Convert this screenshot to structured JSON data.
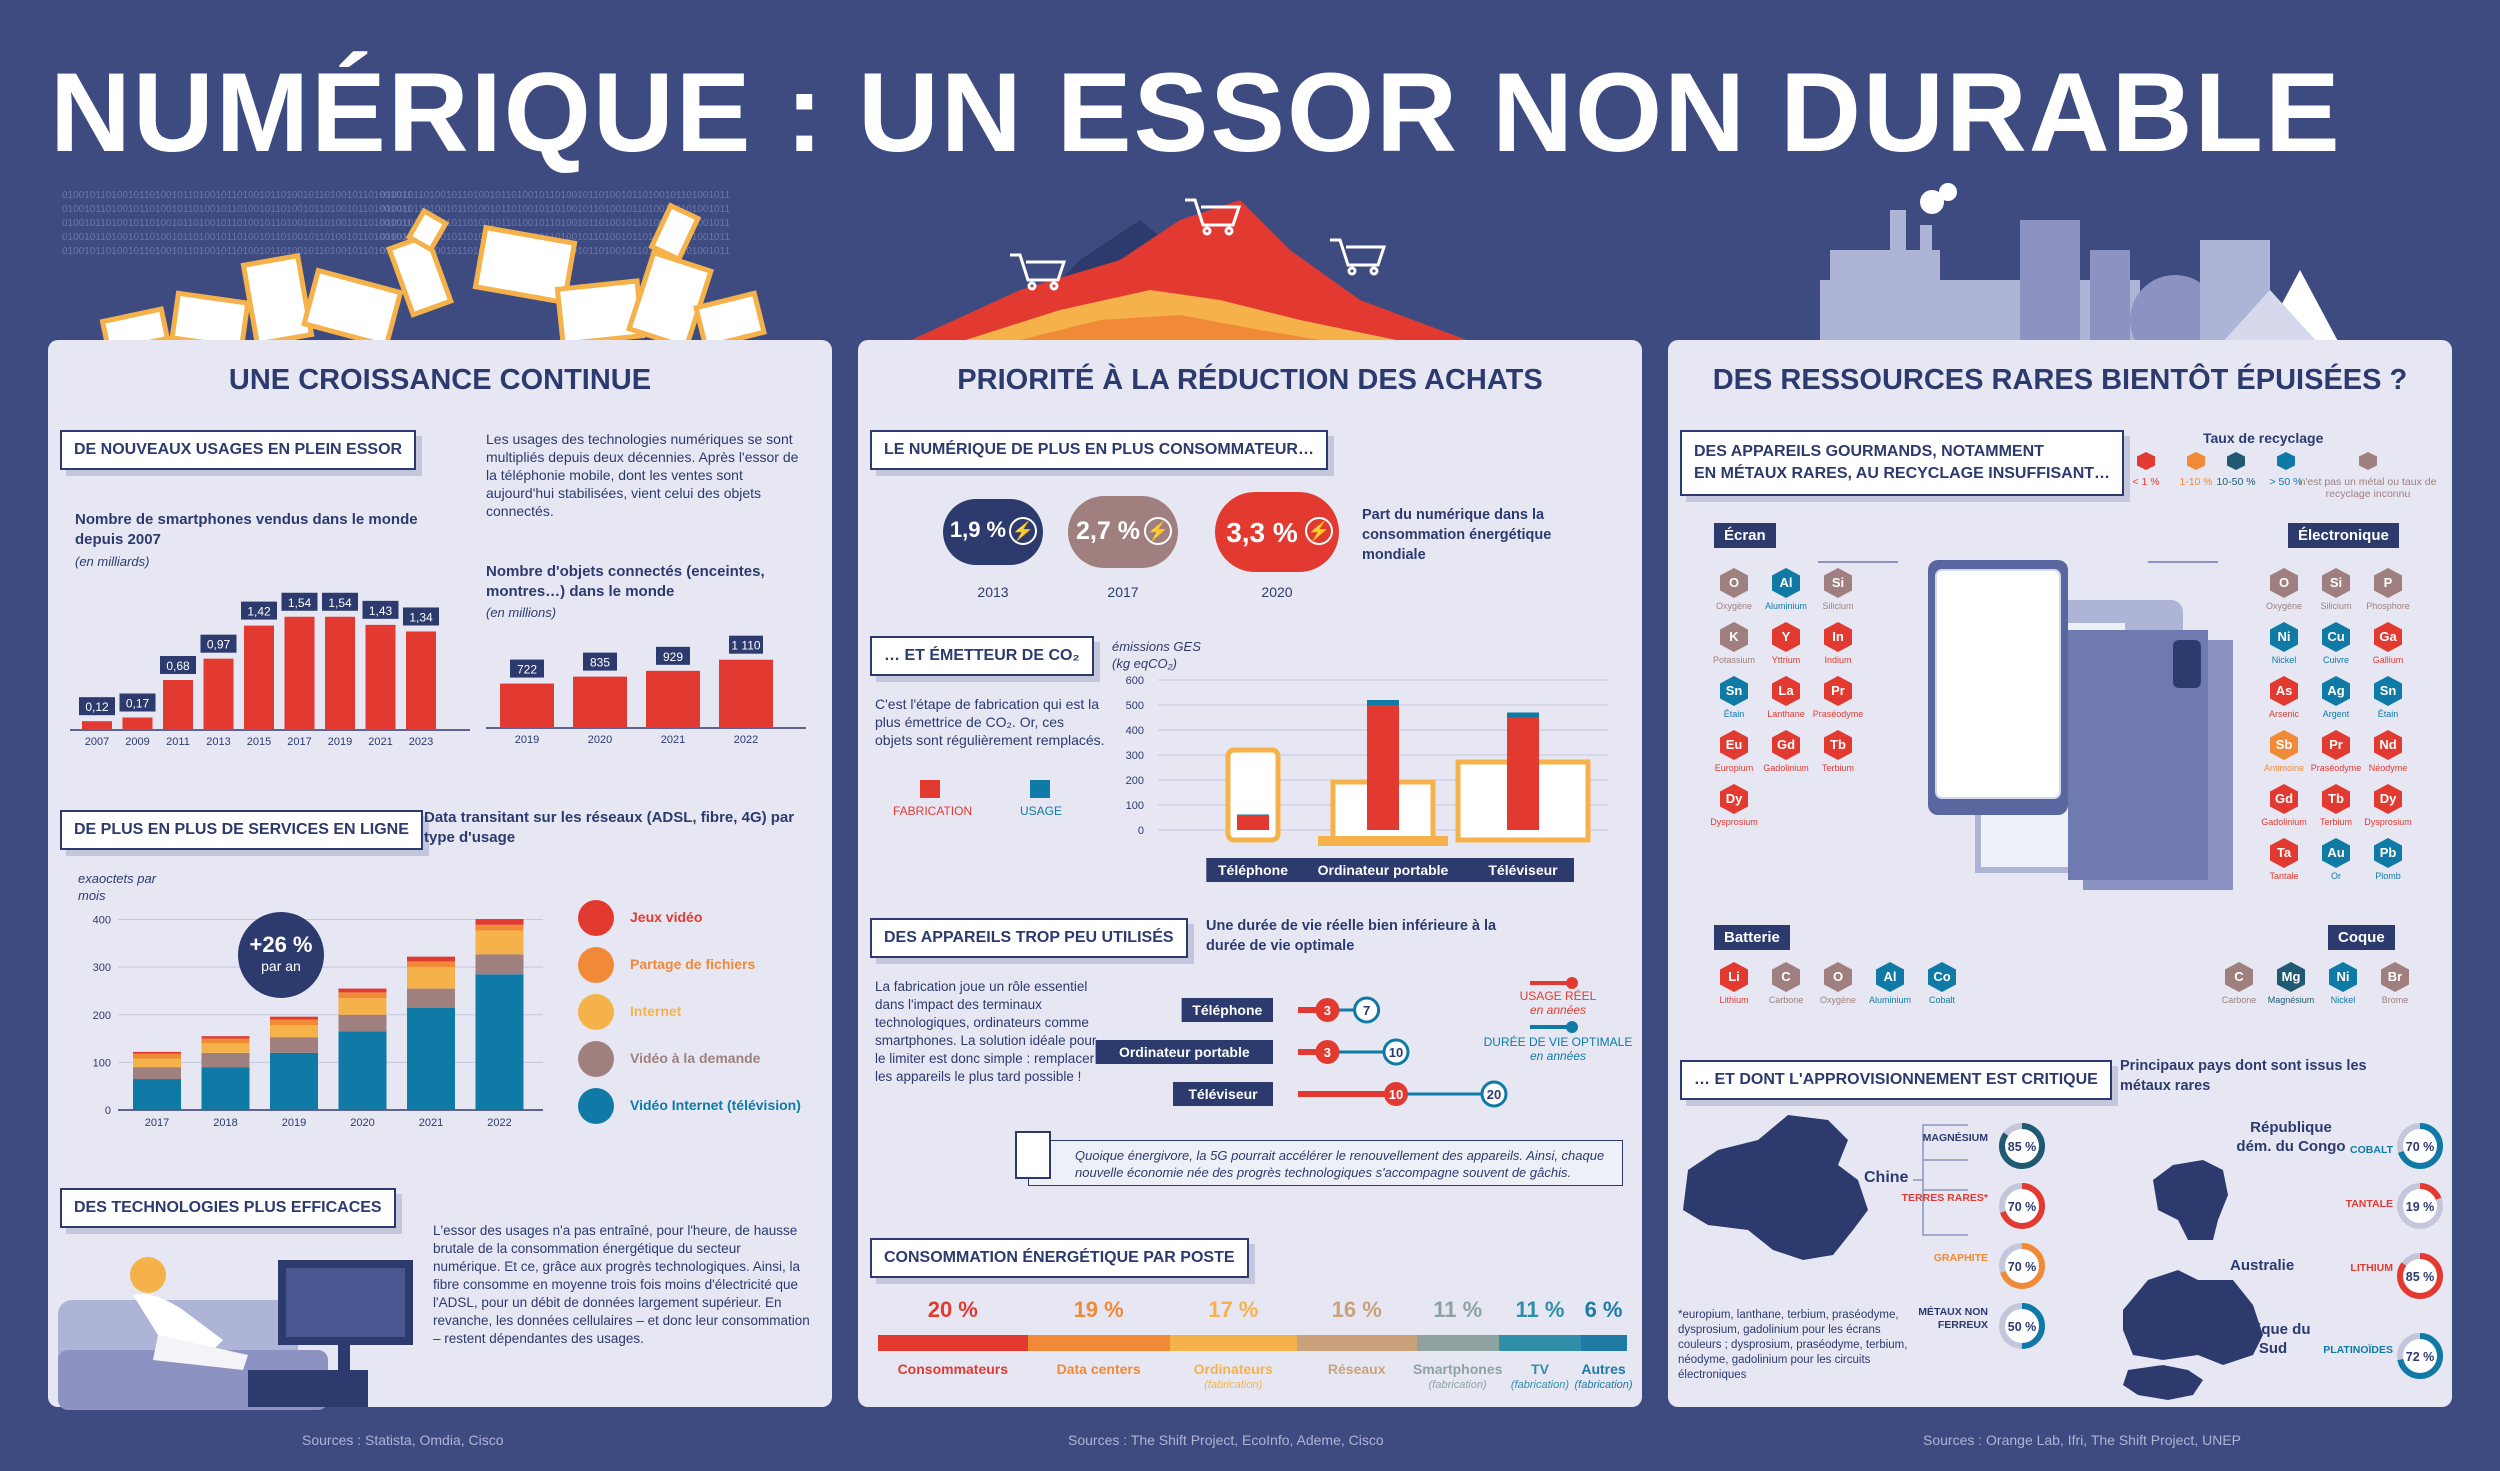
{
  "title": "NUMÉRIQUE : UN ESSOR NON DURABLE",
  "colors": {
    "background": "#3e4b80",
    "panel": "#e6e7f3",
    "navy": "#2d3a6e",
    "red": "#e23a31",
    "orange": "#f08a36",
    "yellow": "#f6b24a",
    "mauve": "#a0807f",
    "blue": "#0f7aa6"
  },
  "binary_text": "0100101101001011010010110100101101001011010010110100101101001011",
  "panel1": {
    "title": "UNE CROISSANCE CONTINUE",
    "s1_title": "DE NOUVEAUX USAGES EN PLEIN ESSOR",
    "s1_text": "Les usages des technologies numériques se sont multipliés depuis deux décennies. Après l'essor de la téléphonie mobile, dont les ventes sont aujourd'hui stabilisées, vient celui des objets connectés.",
    "smartphones_title": "Nombre de smartphones vendus dans le monde depuis 2007",
    "smartphones_unit": "(en milliards)",
    "iot_title": "Nombre d'objets connectés (enceintes, montres…) dans le monde",
    "iot_unit": "(en millions)",
    "s2_title": "DE PLUS EN PLUS DE SERVICES EN LIGNE",
    "s2_subtitle": "Data transitant sur les réseaux (ADSL, fibre, 4G) par type d'usage",
    "data_unit": "exaoctets par mois",
    "growth_value": "+26 %",
    "growth_label": "par an",
    "s3_title": "DES TECHNOLOGIES PLUS EFFICACES",
    "s3_text": "L'essor des usages n'a pas entraîné, pour l'heure, de hausse brutale de la consommation énergétique du secteur numérique. Et ce, grâce aux progrès technologiques. Ainsi, la fibre consomme en moyenne trois fois moins d'électricité que l'ADSL, pour un débit de données largement supérieur. En revanche, les données cellulaires – et donc leur consommation – restent dépendantes des usages.",
    "sources": "Sources : Statista, Omdia, Cisco"
  },
  "panel2": {
    "title": "PRIORITÉ À LA RÉDUCTION DES ACHATS",
    "s1_title": "LE NUMÉRIQUE DE PLUS EN PLUS CONSOMMATEUR…",
    "share_label": "Part du numérique dans la consommation énergétique mondiale",
    "s2_title": "… ET ÉMETTEUR DE CO₂",
    "s2_text": "C'est l'étape de fabrication qui est la plus émettrice de CO₂. Or, ces objets sont régulièrement remplacés.",
    "ges_label": "émissions GES (kg eqCO₂)",
    "fabrication_label": "FABRICATION",
    "usage_label": "USAGE",
    "s3_title": "DES APPAREILS TROP PEU UTILISÉS",
    "s3_subtitle": "Une durée de vie réelle bien inférieure à la durée de vie optimale",
    "s3_text": "La fabrication joue un rôle essentiel dans l'impact des terminaux technologiques, ordinateurs comme smartphones. La solution idéale pour le limiter est donc simple : remplacer les appareils le plus tard possible !",
    "legend_real": "USAGE RÉEL",
    "legend_real_unit": "en années",
    "legend_opt": "DURÉE DE VIE OPTIMALE",
    "legend_opt_unit": "en années",
    "note": "Quoique énergivore, la 5G pourrait accélérer le renouvellement des appareils. Ainsi, chaque nouvelle économie née des progrès technologiques s'accompagne souvent de gâchis.",
    "s4_title": "CONSOMMATION ÉNERGÉTIQUE PAR POSTE",
    "sources": "Sources : The Shift Project, EcoInfo, Ademe, Cisco"
  },
  "panel3": {
    "title": "DES RESSOURCES RARES BIENTÔT ÉPUISÉES ?",
    "s1_title_1": "DES APPAREILS GOURMANDS, NOTAMMENT",
    "s1_title_2": "EN MÉTAUX RARES, AU RECYCLAGE INSUFFISANT…",
    "recycle_title": "Taux de recyclage",
    "recycle_legend": [
      {
        "label": "< 1 %",
        "color": "#e23a31"
      },
      {
        "label": "1-10 %",
        "color": "#f08a36"
      },
      {
        "label": "10-50 %",
        "color": "#1f5a72"
      },
      {
        "label": "> 50 %",
        "color": "#0f7aa6"
      },
      {
        "label": "n'est pas un métal ou taux de recyclage inconnu",
        "color": "#a0807f"
      }
    ],
    "groups": [
      {
        "name": "Écran",
        "elements": [
          {
            "sym": "O",
            "label": "Oxygène",
            "color": "#a0807f"
          },
          {
            "sym": "Al",
            "label": "Aluminium",
            "color": "#0f7aa6"
          },
          {
            "sym": "Si",
            "label": "Silicium",
            "color": "#a0807f"
          },
          {
            "sym": "K",
            "label": "Potassium",
            "color": "#a0807f"
          },
          {
            "sym": "Y",
            "label": "Yttrium",
            "color": "#e23a31"
          },
          {
            "sym": "In",
            "label": "Indium",
            "color": "#e23a31"
          },
          {
            "sym": "Sn",
            "label": "Étain",
            "color": "#0f7aa6"
          },
          {
            "sym": "La",
            "label": "Lanthane",
            "color": "#e23a31"
          },
          {
            "sym": "Pr",
            "label": "Praséodyme",
            "color": "#e23a31"
          },
          {
            "sym": "Eu",
            "label": "Europium",
            "color": "#e23a31"
          },
          {
            "sym": "Gd",
            "label": "Gadolinium",
            "color": "#e23a31"
          },
          {
            "sym": "Tb",
            "label": "Terbium",
            "color": "#e23a31"
          },
          {
            "sym": "Dy",
            "label": "Dysprosium",
            "color": "#e23a31"
          }
        ]
      },
      {
        "name": "Électronique",
        "elements": [
          {
            "sym": "O",
            "label": "Oxygène",
            "color": "#a0807f"
          },
          {
            "sym": "Si",
            "label": "Silicium",
            "color": "#a0807f"
          },
          {
            "sym": "P",
            "label": "Phosphore",
            "color": "#a0807f"
          },
          {
            "sym": "Ni",
            "label": "Nickel",
            "color": "#0f7aa6"
          },
          {
            "sym": "Cu",
            "label": "Cuivre",
            "color": "#0f7aa6"
          },
          {
            "sym": "Ga",
            "label": "Gallium",
            "color": "#e23a31"
          },
          {
            "sym": "As",
            "label": "Arsenic",
            "color": "#e23a31"
          },
          {
            "sym": "Ag",
            "label": "Argent",
            "color": "#0f7aa6"
          },
          {
            "sym": "Sn",
            "label": "Étain",
            "color": "#0f7aa6"
          },
          {
            "sym": "Sb",
            "label": "Antimoine",
            "color": "#f08a36"
          },
          {
            "sym": "Pr",
            "label": "Praséodyme",
            "color": "#e23a31"
          },
          {
            "sym": "Nd",
            "label": "Néodyme",
            "color": "#e23a31"
          },
          {
            "sym": "Gd",
            "label": "Gadolinium",
            "color": "#e23a31"
          },
          {
            "sym": "Tb",
            "label": "Terbium",
            "color": "#e23a31"
          },
          {
            "sym": "Dy",
            "label": "Dysprosium",
            "color": "#e23a31"
          },
          {
            "sym": "Ta",
            "label": "Tantale",
            "color": "#e23a31"
          },
          {
            "sym": "Au",
            "label": "Or",
            "color": "#0f7aa6"
          },
          {
            "sym": "Pb",
            "label": "Plomb",
            "color": "#0f7aa6"
          }
        ]
      },
      {
        "name": "Batterie",
        "elements": [
          {
            "sym": "Li",
            "label": "Lithium",
            "color": "#e23a31"
          },
          {
            "sym": "C",
            "label": "Carbone",
            "color": "#a0807f"
          },
          {
            "sym": "O",
            "label": "Oxygène",
            "color": "#a0807f"
          },
          {
            "sym": "Al",
            "label": "Aluminium",
            "color": "#0f7aa6"
          },
          {
            "sym": "Co",
            "label": "Cobalt",
            "color": "#0f7aa6"
          }
        ]
      },
      {
        "name": "Coque",
        "elements": [
          {
            "sym": "C",
            "label": "Carbone",
            "color": "#a0807f"
          },
          {
            "sym": "Mg",
            "label": "Magnésium",
            "color": "#1f5a72"
          },
          {
            "sym": "Ni",
            "label": "Nickel",
            "color": "#0f7aa6"
          },
          {
            "sym": "Br",
            "label": "Brome",
            "color": "#a0807f"
          }
        ]
      }
    ],
    "s2_title": "… ET DONT L'APPROVISIONNEMENT EST CRITIQUE",
    "s2_subtitle": "Principaux pays dont sont issus les métaux rares",
    "china": "Chine",
    "china_items": [
      {
        "label": "MAGNÉSIUM",
        "value": 85,
        "text": "85 %",
        "color": "#1f5a72",
        "lcolor": "#2d3a6e"
      },
      {
        "label": "TERRES RARES*",
        "value": 70,
        "text": "70 %",
        "color": "#e23a31",
        "lcolor": "#e23a31"
      },
      {
        "label": "GRAPHITE",
        "value": 70,
        "text": "70 %",
        "color": "#f08a36",
        "lcolor": "#f08a36"
      },
      {
        "label": "MÉTAUX NON FERREUX",
        "value": 50,
        "text": "50 %",
        "color": "#0f7aa6",
        "lcolor": "#2d3a6e"
      }
    ],
    "footnote": "*europium, lanthane, terbium, praséodyme, dysprosium, gadolinium pour les écrans couleurs ; dysprosium, praséodyme, terbium, néodyme, gadolinium pour les circuits électroniques",
    "rdc": "République dém. du Congo",
    "rdc_items": [
      {
        "label": "COBALT",
        "value": 70,
        "text": "70 %",
        "color": "#0f7aa6",
        "lcolor": "#0f7aa6"
      },
      {
        "label": "TANTALE",
        "value": 19,
        "text": "19 %",
        "color": "#e23a31",
        "lcolor": "#e23a31"
      }
    ],
    "australia": "Australie",
    "australia_items": [
      {
        "label": "LITHIUM",
        "value": 85,
        "text": "85 %",
        "color": "#e23a31",
        "lcolor": "#e23a31"
      }
    ],
    "south_africa": "Afrique du Sud",
    "south_africa_items": [
      {
        "label": "PLATINOÏDES",
        "value": 72,
        "text": "72 %",
        "color": "#0f7aa6",
        "lcolor": "#0f7aa6"
      }
    ],
    "sources": "Sources : Orange Lab, Ifri, The Shift Project, UNEP"
  },
  "chart_data": [
    {
      "type": "bar",
      "title": "Nombre de smartphones vendus dans le monde depuis 2007",
      "ylabel": "(en milliards)",
      "categories": [
        "2007",
        "2009",
        "2011",
        "2013",
        "2015",
        "2017",
        "2019",
        "2021",
        "2023"
      ],
      "values": [
        0.12,
        0.17,
        0.68,
        0.97,
        1.42,
        1.54,
        1.54,
        1.43,
        1.34
      ],
      "labels": [
        "0,12",
        "0,17",
        "0,68",
        "0,97",
        "1,42",
        "1,54",
        "1,54",
        "1,43",
        "1,34"
      ],
      "ylim": [
        0,
        1.7
      ]
    },
    {
      "type": "bar",
      "title": "Nombre d'objets connectés (enceintes, montres…) dans le monde",
      "ylabel": "(en millions)",
      "categories": [
        "2019",
        "2020",
        "2021",
        "2022"
      ],
      "values": [
        722,
        835,
        929,
        1110
      ],
      "labels": [
        "722",
        "835",
        "929",
        "1 110"
      ],
      "ylim": [
        0,
        1300
      ]
    },
    {
      "type": "bar",
      "title": "Data transitant sur les réseaux (ADSL, fibre, 4G) par type d'usage",
      "ylabel": "exaoctets par mois",
      "categories": [
        "2017",
        "2018",
        "2019",
        "2020",
        "2021",
        "2022"
      ],
      "series": [
        {
          "name": "Vidéo Internet (télévision)",
          "color": "#0f7aa6",
          "values": [
            65,
            90,
            120,
            165,
            215,
            285
          ]
        },
        {
          "name": "Vidéo à la demande",
          "color": "#a0807f",
          "values": [
            25,
            30,
            33,
            35,
            40,
            42
          ]
        },
        {
          "name": "Internet",
          "color": "#f6b24a",
          "values": [
            18,
            20,
            25,
            35,
            45,
            50
          ]
        },
        {
          "name": "Partage de fichiers",
          "color": "#f08a36",
          "values": [
            10,
            10,
            12,
            12,
            12,
            12
          ]
        },
        {
          "name": "Jeux vidéo",
          "color": "#e23a31",
          "values": [
            4,
            5,
            6,
            8,
            10,
            12
          ]
        }
      ],
      "yticks": [
        0,
        100,
        200,
        300,
        400
      ],
      "ylim": [
        0,
        420
      ]
    },
    {
      "type": "bar",
      "title": "",
      "categories": [
        "2013",
        "2017",
        "2020"
      ],
      "values": [
        1.9,
        2.7,
        3.3
      ],
      "labels": [
        "1,9 %",
        "2,7 %",
        "3,3 %"
      ]
    },
    {
      "type": "bar",
      "title": "",
      "ylabel": "émissions GES (kg eqCO₂)",
      "categories": [
        "Téléphone",
        "Ordinateur portable",
        "Téléviseur"
      ],
      "series": [
        {
          "name": "FABRICATION",
          "color": "#e23a31",
          "values": [
            60,
            500,
            450
          ]
        },
        {
          "name": "USAGE",
          "color": "#0f7aa6",
          "values": [
            2,
            20,
            20
          ]
        }
      ],
      "yticks": [
        0,
        100,
        200,
        300,
        400,
        500,
        600
      ],
      "ylim": [
        0,
        600
      ]
    },
    {
      "type": "bar",
      "title": "",
      "categories": [
        "Téléphone",
        "Ordinateur portable",
        "Téléviseur"
      ],
      "series": [
        {
          "name": "USAGE RÉEL",
          "values": [
            3,
            3,
            10
          ]
        },
        {
          "name": "DURÉE DE VIE OPTIMALE",
          "values": [
            7,
            10,
            20
          ]
        }
      ],
      "xlim": [
        0,
        20
      ]
    },
    {
      "type": "bar",
      "title": "",
      "categories": [
        "Consommateurs",
        "Data centers",
        "Ordinateurs",
        "Réseaux",
        "Smartphones",
        "TV",
        "Autres"
      ],
      "sublabels": [
        "",
        "",
        "(fabrication)",
        "",
        "(fabrication)",
        "(fabrication)",
        "(fabrication)"
      ],
      "values": [
        20,
        19,
        17,
        16,
        11,
        11,
        6
      ],
      "labels": [
        "20 %",
        "19 %",
        "17 %",
        "16 %",
        "11 %",
        "11 %",
        "6 %"
      ],
      "colors": [
        "#e23a31",
        "#f08a36",
        "#f6b24a",
        "#c9a27c",
        "#8ea3a0",
        "#2f8fa8",
        "#1f7aa6"
      ]
    }
  ]
}
